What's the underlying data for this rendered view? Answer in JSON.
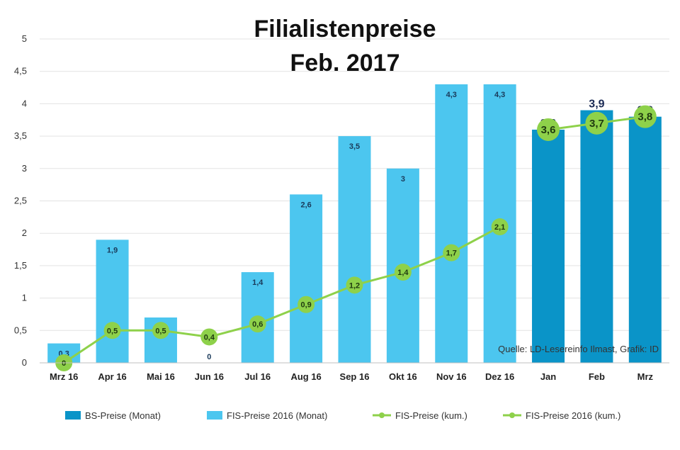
{
  "chart_data": {
    "type": "bar",
    "title_line1": "Filialistenpreise",
    "title_line2": "Feb. 2017",
    "source_note": "Quelle: LD-Lesereinfo Ilmast, Grafik: ID",
    "categories": [
      "Mrz 16",
      "Apr 16",
      "Mai 16",
      "Jun 16",
      "Jul 16",
      "Aug 16",
      "Sep 16",
      "Okt 16",
      "Nov 16",
      "Dez 16",
      "Jan",
      "Feb",
      "Mrz"
    ],
    "ylim": [
      0,
      5
    ],
    "yticks": [
      "0",
      "0,5",
      "1",
      "1,5",
      "2",
      "2,5",
      "3",
      "3,5",
      "4",
      "4,5",
      "5"
    ],
    "grid": true,
    "legend_position": "bottom",
    "colors": {
      "bar_dark": "#0a94c8",
      "bar_light": "#4cc6ef",
      "line": "#8ed14a",
      "marker": "#8ed14a"
    },
    "series": [
      {
        "name": "BS-Preise (Monat)",
        "kind": "bar",
        "values": [
          null,
          null,
          null,
          null,
          null,
          null,
          null,
          null,
          null,
          null,
          3.6,
          3.9,
          3.8
        ],
        "labels": [
          "",
          "",
          "",
          "",
          "",
          "",
          "",
          "",
          "",
          "",
          "3,6",
          "3,9",
          "3,8"
        ]
      },
      {
        "name": "FIS-Preise 2016 (Monat)",
        "kind": "bar",
        "values": [
          0.3,
          1.9,
          0.7,
          0,
          1.4,
          2.6,
          3.5,
          3.0,
          4.3,
          4.3,
          null,
          null,
          null
        ],
        "labels": [
          "0,3",
          "1,9",
          "0,7",
          "0",
          "1,4",
          "2,6",
          "3,5",
          "3",
          "4,3",
          "4,3",
          "",
          "",
          ""
        ]
      },
      {
        "name": "FIS-Preise (kum.)",
        "kind": "line",
        "values": [
          null,
          null,
          null,
          null,
          null,
          null,
          null,
          null,
          null,
          null,
          3.6,
          3.7,
          3.8
        ],
        "labels": [
          "",
          "",
          "",
          "",
          "",
          "",
          "",
          "",
          "",
          "",
          "3,6",
          "3,7",
          "3,8"
        ]
      },
      {
        "name": "FIS-Preise 2016 (kum.)",
        "kind": "line",
        "values": [
          0,
          0.5,
          0.5,
          0.4,
          0.6,
          0.9,
          1.2,
          1.4,
          1.7,
          2.1,
          null,
          null,
          null
        ],
        "labels": [
          "0",
          "0,5",
          "0,5",
          "0,4",
          "0,6",
          "0,9",
          "1,2",
          "1,4",
          "1,7",
          "2,1",
          "",
          "",
          ""
        ]
      }
    ]
  }
}
